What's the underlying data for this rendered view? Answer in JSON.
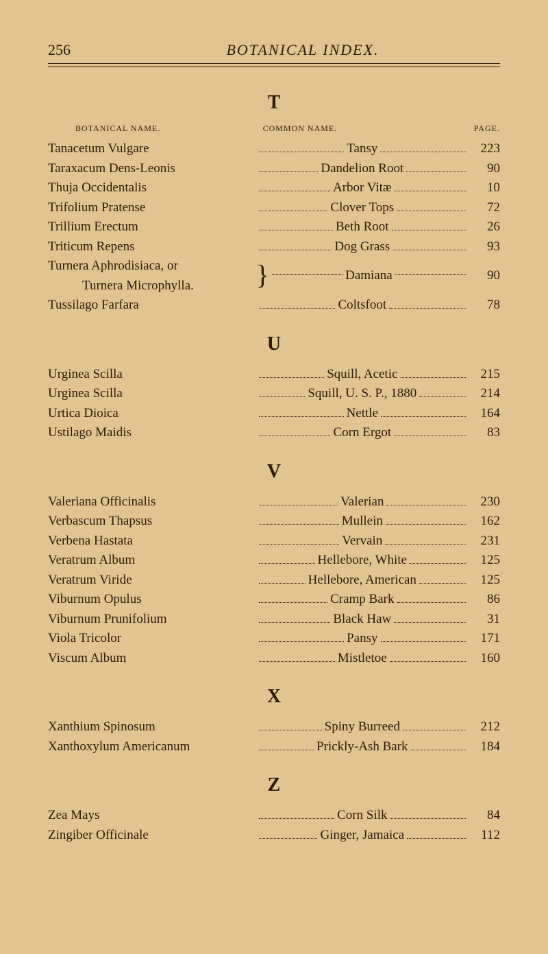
{
  "header": {
    "page_number": "256",
    "running_head": "BOTANICAL INDEX."
  },
  "column_labels": {
    "botanical": "BOTANICAL NAME.",
    "common": "COMMON NAME.",
    "page": "PAGE."
  },
  "sections": [
    {
      "letter": "T",
      "show_col_heads": true,
      "entries": [
        {
          "botanical": "Tanacetum Vulgare",
          "common": "Tansy",
          "page": "223"
        },
        {
          "botanical": "Taraxacum Dens-Leonis",
          "common": "Dandelion Root",
          "page": "90"
        },
        {
          "botanical": "Thuja Occidentalis",
          "common": "Arbor Vitæ",
          "page": "10"
        },
        {
          "botanical": "Trifolium Pratense",
          "common": "Clover Tops",
          "page": "72"
        },
        {
          "botanical": "Trillium Erectum",
          "common": "Beth Root",
          "page": "26"
        },
        {
          "botanical": "Triticum Repens",
          "common": "Dog Grass",
          "page": "93"
        },
        {
          "brace": true,
          "botanical_lines": [
            "Turnera Aphrodisiaca, or",
            "Turnera Microphylla."
          ],
          "common": "Damiana",
          "page": "90"
        },
        {
          "botanical": "Tussilago Farfara",
          "common": "Coltsfoot",
          "page": "78"
        }
      ]
    },
    {
      "letter": "U",
      "entries": [
        {
          "botanical": "Urginea Scilla",
          "common": "Squill, Acetic",
          "page": "215"
        },
        {
          "botanical": "Urginea Scilla",
          "common": "Squill, U. S. P., 1880",
          "page": "214"
        },
        {
          "botanical": "Urtica Dioica",
          "common": "Nettle",
          "page": "164"
        },
        {
          "botanical": "Ustilago Maidis",
          "common": "Corn Ergot",
          "page": "83"
        }
      ]
    },
    {
      "letter": "V",
      "entries": [
        {
          "botanical": "Valeriana Officinalis",
          "common": "Valerian",
          "page": "230"
        },
        {
          "botanical": "Verbascum Thapsus",
          "common": "Mullein",
          "page": "162"
        },
        {
          "botanical": "Verbena Hastata",
          "common": "Vervain",
          "page": "231"
        },
        {
          "botanical": "Veratrum Album",
          "common": "Hellebore, White",
          "page": "125"
        },
        {
          "botanical": "Veratrum Viride",
          "common": "Hellebore, American",
          "page": "125"
        },
        {
          "botanical": "Viburnum Opulus",
          "common": "Cramp Bark",
          "page": "86"
        },
        {
          "botanical": "Viburnum Prunifolium",
          "common": "Black Haw",
          "page": "31"
        },
        {
          "botanical": "Viola Tricolor",
          "common": "Pansy",
          "page": "171"
        },
        {
          "botanical": "Viscum Album",
          "common": "Mistletoe",
          "page": "160"
        }
      ]
    },
    {
      "letter": "X",
      "entries": [
        {
          "botanical": "Xanthium Spinosum",
          "common": "Spiny Burreed",
          "page": "212"
        },
        {
          "botanical": "Xanthoxylum Americanum",
          "common": "Prickly-Ash Bark",
          "page": "184"
        }
      ]
    },
    {
      "letter": "Z",
      "entries": [
        {
          "botanical": "Zea Mays",
          "common": "Corn Silk",
          "page": "84"
        },
        {
          "botanical": "Zingiber Officinale",
          "common": "Ginger, Jamaica",
          "page": "112"
        }
      ]
    }
  ]
}
